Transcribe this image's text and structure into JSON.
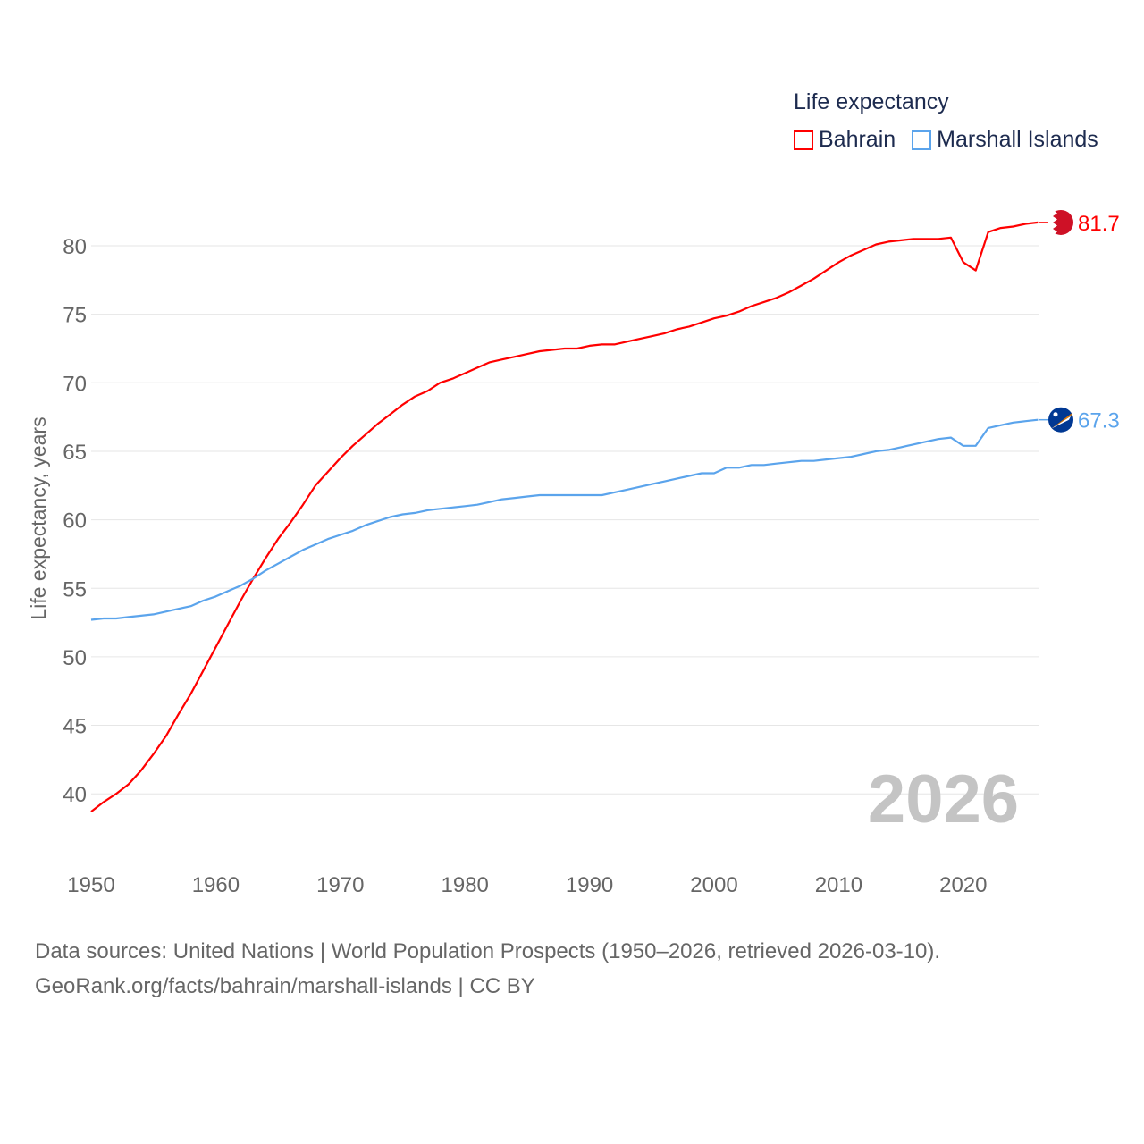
{
  "chart_data": {
    "type": "line",
    "title": "Life expectancy",
    "xlabel": "",
    "ylabel": "Life expectancy, years",
    "xlim": [
      1950,
      2026
    ],
    "ylim": [
      37,
      83
    ],
    "grid": true,
    "legend_position": "top-right",
    "x_ticks": [
      "1950",
      "1960",
      "1970",
      "1980",
      "1990",
      "2000",
      "2010",
      "2020"
    ],
    "y_ticks": [
      "40",
      "45",
      "50",
      "55",
      "60",
      "65",
      "70",
      "75",
      "80"
    ],
    "year_watermark": "2026",
    "x": [
      1950,
      1951,
      1952,
      1953,
      1954,
      1955,
      1956,
      1957,
      1958,
      1959,
      1960,
      1961,
      1962,
      1963,
      1964,
      1965,
      1966,
      1967,
      1968,
      1969,
      1970,
      1971,
      1972,
      1973,
      1974,
      1975,
      1976,
      1977,
      1978,
      1979,
      1980,
      1981,
      1982,
      1983,
      1984,
      1985,
      1986,
      1987,
      1988,
      1989,
      1990,
      1991,
      1992,
      1993,
      1994,
      1995,
      1996,
      1997,
      1998,
      1999,
      2000,
      2001,
      2002,
      2003,
      2004,
      2005,
      2006,
      2007,
      2008,
      2009,
      2010,
      2011,
      2012,
      2013,
      2014,
      2015,
      2016,
      2017,
      2018,
      2019,
      2020,
      2021,
      2022,
      2023,
      2024,
      2025,
      2026
    ],
    "series": [
      {
        "name": "Bahrain",
        "color": "#ff0000",
        "end_label": "81.7",
        "values": [
          38.7,
          39.4,
          40.0,
          40.7,
          41.7,
          42.9,
          44.2,
          45.8,
          47.3,
          49.0,
          50.7,
          52.4,
          54.1,
          55.7,
          57.2,
          58.6,
          59.8,
          61.1,
          62.5,
          63.5,
          64.5,
          65.4,
          66.2,
          67.0,
          67.7,
          68.4,
          69.0,
          69.4,
          70.0,
          70.3,
          70.7,
          71.1,
          71.5,
          71.7,
          71.9,
          72.1,
          72.3,
          72.4,
          72.5,
          72.5,
          72.7,
          72.8,
          72.8,
          73.0,
          73.2,
          73.4,
          73.6,
          73.9,
          74.1,
          74.4,
          74.7,
          74.9,
          75.2,
          75.6,
          75.9,
          76.2,
          76.6,
          77.1,
          77.6,
          78.2,
          78.8,
          79.3,
          79.7,
          80.1,
          80.3,
          80.4,
          80.5,
          80.5,
          80.5,
          80.6,
          78.8,
          78.2,
          81.0,
          81.3,
          81.4,
          81.6,
          81.7
        ]
      },
      {
        "name": "Marshall Islands",
        "color": "#5ba4ec",
        "end_label": "67.3",
        "values": [
          52.7,
          52.8,
          52.8,
          52.9,
          53.0,
          53.1,
          53.3,
          53.5,
          53.7,
          54.1,
          54.4,
          54.8,
          55.2,
          55.7,
          56.3,
          56.8,
          57.3,
          57.8,
          58.2,
          58.6,
          58.9,
          59.2,
          59.6,
          59.9,
          60.2,
          60.4,
          60.5,
          60.7,
          60.8,
          60.9,
          61.0,
          61.1,
          61.3,
          61.5,
          61.6,
          61.7,
          61.8,
          61.8,
          61.8,
          61.8,
          61.8,
          61.8,
          62.0,
          62.2,
          62.4,
          62.6,
          62.8,
          63.0,
          63.2,
          63.4,
          63.4,
          63.8,
          63.8,
          64.0,
          64.0,
          64.1,
          64.2,
          64.3,
          64.3,
          64.4,
          64.5,
          64.6,
          64.8,
          65.0,
          65.1,
          65.3,
          65.5,
          65.7,
          65.9,
          66.0,
          65.4,
          65.4,
          66.7,
          66.9,
          67.1,
          67.2,
          67.3
        ]
      }
    ]
  },
  "source": {
    "line1": "Data sources: United Nations | World Population Prospects (1950–2026, retrieved 2026-03-10).",
    "line2": "GeoRank.org/facts/bahrain/marshall-islands | CC BY"
  }
}
